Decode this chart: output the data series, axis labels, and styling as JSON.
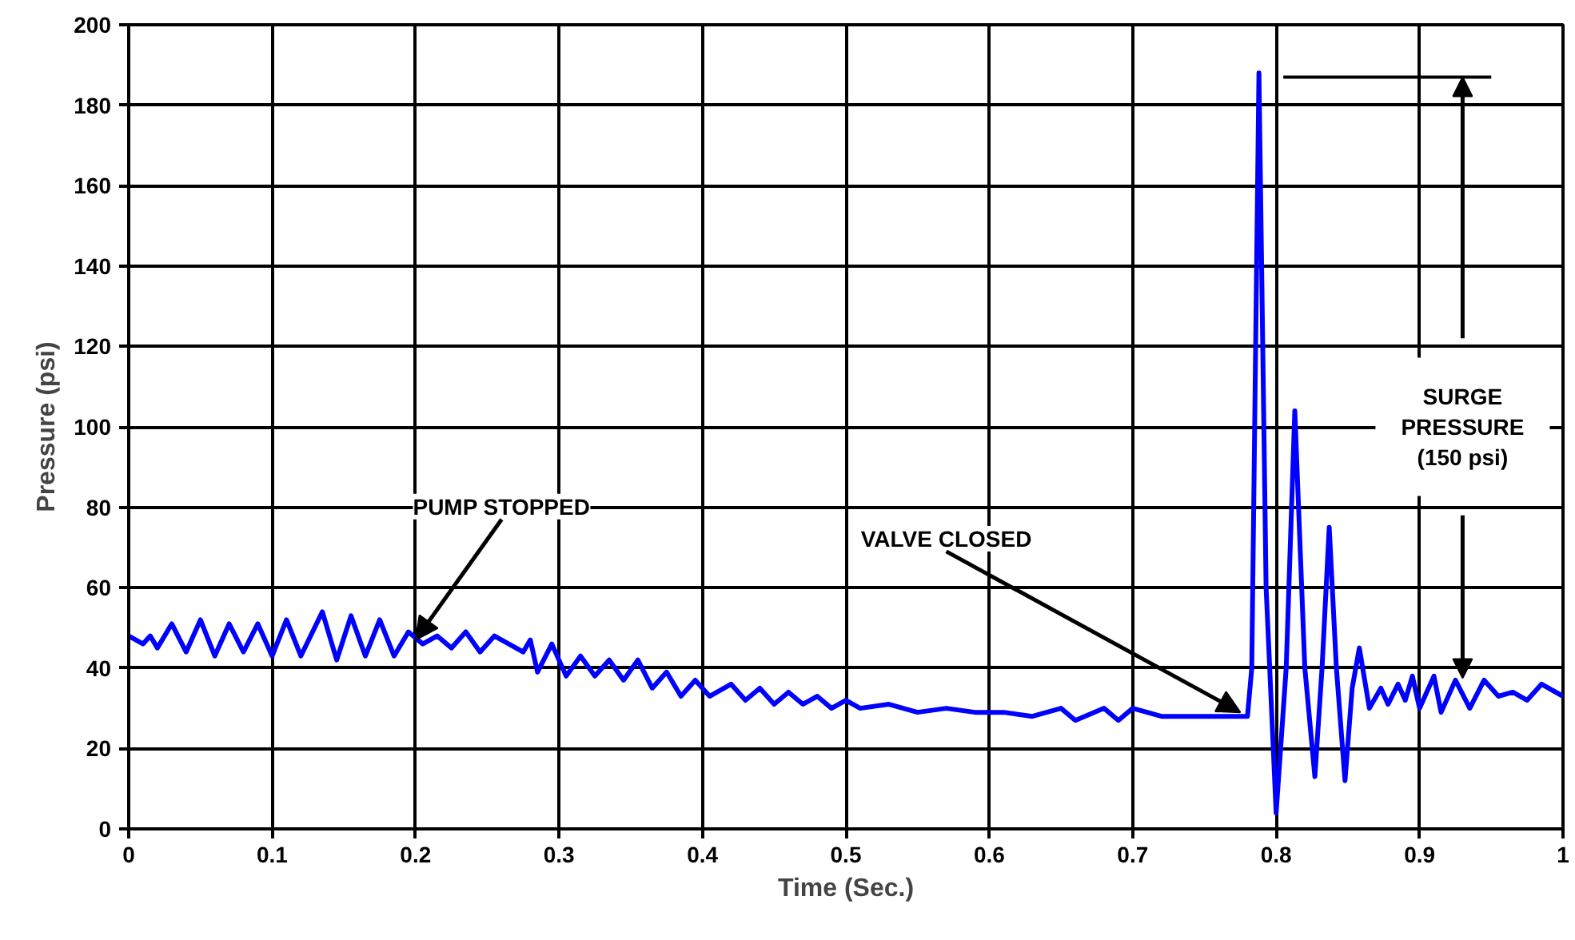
{
  "chart_data": {
    "type": "line",
    "xlabel": "Time (Sec.)",
    "ylabel": "Pressure (psi)",
    "x": [
      0,
      0.01,
      0.015,
      0.02,
      0.03,
      0.04,
      0.05,
      0.06,
      0.07,
      0.08,
      0.09,
      0.1,
      0.11,
      0.12,
      0.135,
      0.145,
      0.155,
      0.165,
      0.175,
      0.185,
      0.195,
      0.205,
      0.215,
      0.225,
      0.235,
      0.245,
      0.255,
      0.265,
      0.275,
      0.28,
      0.285,
      0.295,
      0.305,
      0.315,
      0.325,
      0.335,
      0.345,
      0.355,
      0.365,
      0.375,
      0.385,
      0.395,
      0.405,
      0.42,
      0.43,
      0.44,
      0.45,
      0.46,
      0.47,
      0.48,
      0.49,
      0.5,
      0.51,
      0.53,
      0.55,
      0.57,
      0.59,
      0.61,
      0.63,
      0.65,
      0.66,
      0.68,
      0.69,
      0.7,
      0.72,
      0.74,
      0.76,
      0.78,
      0.783,
      0.788,
      0.793,
      0.8,
      0.807,
      0.813,
      0.82,
      0.827,
      0.832,
      0.837,
      0.842,
      0.848,
      0.853,
      0.858,
      0.865,
      0.873,
      0.878,
      0.885,
      0.89,
      0.895,
      0.9,
      0.91,
      0.915,
      0.925,
      0.935,
      0.945,
      0.955,
      0.965,
      0.975,
      0.985,
      1.0
    ],
    "series": [
      {
        "color": "#0000ff",
        "values": [
          48,
          46,
          48,
          45,
          51,
          44,
          52,
          43,
          51,
          44,
          51,
          43,
          52,
          43,
          54,
          42,
          53,
          43,
          52,
          43,
          49,
          46,
          48,
          45,
          49,
          44,
          48,
          46,
          44,
          47,
          39,
          46,
          38,
          43,
          38,
          42,
          37,
          42,
          35,
          39,
          33,
          37,
          33,
          36,
          32,
          35,
          31,
          34,
          31,
          33,
          30,
          32,
          30,
          31,
          29,
          30,
          29,
          29,
          28,
          30,
          27,
          30,
          27,
          30,
          28,
          28,
          28,
          28,
          40,
          188,
          60,
          4,
          40,
          104,
          40,
          13,
          40,
          75,
          40,
          12,
          35,
          45,
          30,
          35,
          31,
          36,
          32,
          38,
          30,
          38,
          29,
          37,
          30,
          37,
          33,
          34,
          32,
          36,
          33
        ]
      }
    ],
    "xlim": [
      0,
      1
    ],
    "xticks": [
      0,
      0.1,
      0.2,
      0.3,
      0.4,
      0.5,
      0.6,
      0.7,
      0.8,
      0.9,
      1
    ],
    "ylim": [
      0,
      200
    ],
    "yticks": [
      0,
      20,
      40,
      60,
      80,
      100,
      120,
      140,
      160,
      180,
      200
    ],
    "grid": true,
    "line_style": "solid",
    "annotations": [
      {
        "text": "PUMP STOPPED",
        "x": 0.2,
        "y": 47
      },
      {
        "text": "VALVE CLOSED",
        "x": 0.775,
        "y": 29
      }
    ],
    "ref_lines": [
      {
        "axis": "y",
        "value": 187,
        "label": "SURGE\nPRESSURE\n(150 psi)",
        "color": "#000000"
      }
    ]
  }
}
